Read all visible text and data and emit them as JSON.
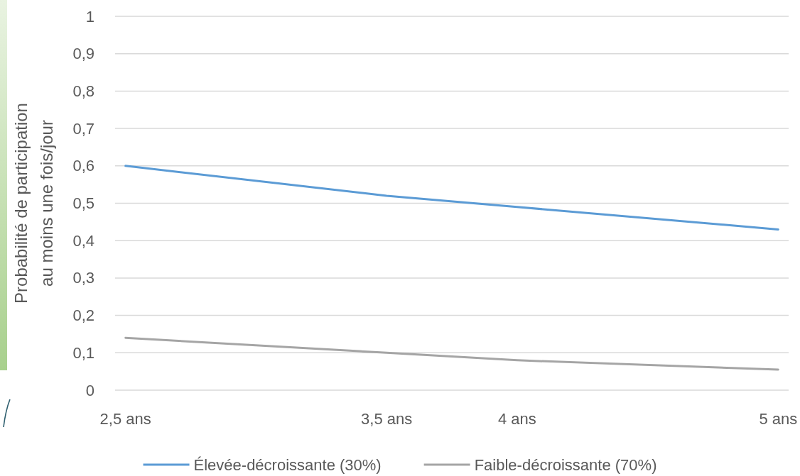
{
  "chart_data": {
    "type": "line",
    "ylabel": "Probabilité de participation au moins une fois/jour",
    "x": [
      2.5,
      3.5,
      4,
      5
    ],
    "xlim": [
      2.46,
      5.04
    ],
    "xticks": [
      {
        "value": 2.5,
        "label": "2,5 ans"
      },
      {
        "value": 3.5,
        "label": "3,5 ans"
      },
      {
        "value": 4,
        "label": "4 ans"
      },
      {
        "value": 5,
        "label": "5 ans"
      }
    ],
    "ylim": [
      0,
      1
    ],
    "yticks": [
      0,
      {
        "value": 0.1,
        "label": "0,1"
      },
      {
        "value": 0.2,
        "label": "0,2"
      },
      {
        "value": 0.3,
        "label": "0,3"
      },
      {
        "value": 0.4,
        "label": "0,4"
      },
      {
        "value": 0.5,
        "label": "0,5"
      },
      {
        "value": 0.6,
        "label": "0,6"
      },
      {
        "value": 0.7,
        "label": "0,7"
      },
      {
        "value": 0.8,
        "label": "0,8"
      },
      {
        "value": 0.9,
        "label": "0,9"
      },
      1
    ],
    "series": [
      {
        "name": "Élevée-décroissante (30%)",
        "color": "#5b9bd5",
        "values": [
          0.6,
          0.52,
          0.49,
          0.43
        ]
      },
      {
        "name": "Faible-décroissante (70%)",
        "color": "#a5a5a5",
        "values": [
          0.14,
          0.1,
          0.08,
          0.055
        ]
      }
    ],
    "grid": "y",
    "legend": "bottom"
  }
}
